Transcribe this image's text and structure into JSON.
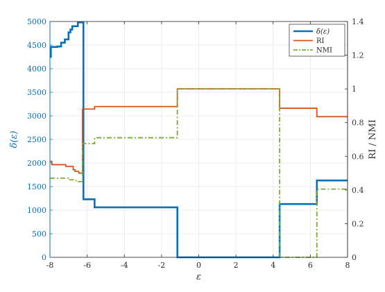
{
  "chart_data": {
    "type": "line",
    "title": "",
    "xlabel": "ε",
    "ylabel_left": "δ(ε)",
    "ylabel_right": "RI / NMI",
    "xlim": [
      -8,
      8
    ],
    "ylim_left": [
      0,
      5000
    ],
    "ylim_right": [
      0,
      1.4
    ],
    "x_ticks": [
      -8,
      -6,
      -4,
      -2,
      0,
      2,
      4,
      6,
      8
    ],
    "y_left_ticks": [
      0,
      500,
      1000,
      1500,
      2000,
      2500,
      3000,
      3500,
      4000,
      4500,
      5000
    ],
    "y_right_ticks": [
      0,
      0.2,
      0.4,
      0.6,
      0.8,
      1,
      1.2,
      1.4
    ],
    "grid": true,
    "legend_position": "top-right",
    "colors": {
      "delta": "#0072BD",
      "ri": "#D95319",
      "nmi": "#77AC30",
      "left_axis": "#0072BD",
      "right_axis": "#333333",
      "grid": "#e6e6e6"
    },
    "series": [
      {
        "name": "δ(ε)",
        "axis": "left",
        "style": "solid",
        "step": true,
        "x": [
          -8.0,
          -7.95,
          -7.6,
          -7.4,
          -7.2,
          -7.0,
          -6.9,
          -6.8,
          -6.5,
          -6.4,
          -6.2,
          -5.6,
          -1.15,
          4.35,
          6.35,
          8.0
        ],
        "y": [
          4250,
          4460,
          4470,
          4550,
          4620,
          4770,
          4830,
          4900,
          4980,
          4980,
          1230,
          1060,
          0,
          1130,
          1630,
          1630
        ]
      },
      {
        "name": "RI",
        "axis": "right",
        "style": "solid",
        "step": true,
        "x": [
          -8.0,
          -7.9,
          -7.4,
          -7.15,
          -6.75,
          -6.65,
          -6.45,
          -6.25,
          -5.6,
          -1.15,
          4.35,
          6.35,
          8.0
        ],
        "y": [
          0.57,
          0.55,
          0.55,
          0.54,
          0.52,
          0.51,
          0.5,
          0.88,
          0.895,
          1.0,
          0.885,
          0.835,
          0.835
        ]
      },
      {
        "name": "NMI",
        "axis": "right",
        "style": "dashdot",
        "step": true,
        "x": [
          -8.0,
          -7.5,
          -7.0,
          -6.6,
          -6.25,
          -5.9,
          -5.6,
          -1.15,
          4.35,
          6.35,
          8.0
        ],
        "y": [
          0.47,
          0.47,
          0.46,
          0.45,
          0.675,
          0.675,
          0.71,
          1.0,
          0.0,
          0.405,
          0.405
        ]
      }
    ]
  }
}
